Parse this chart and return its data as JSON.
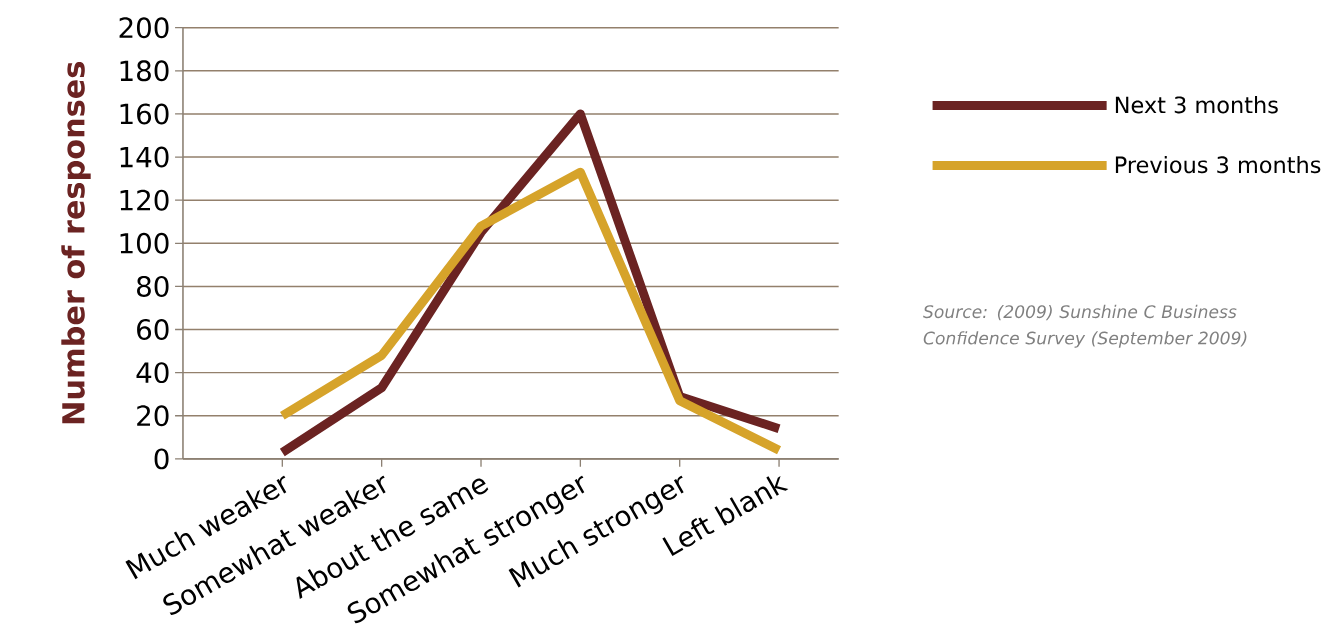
{
  "chart_data": {
    "type": "line",
    "ylabel": "Number of responses",
    "categories": [
      "Much weaker",
      "Somewhat weaker",
      "About the same",
      "Somewhat stronger",
      "Much stronger",
      "Left blank"
    ],
    "series": [
      {
        "name": "Next 3 months",
        "color": "#6b2322",
        "values": [
          3,
          33,
          105,
          160,
          29,
          14
        ]
      },
      {
        "name": "Previous 3 months",
        "color": "#d6a32a",
        "values": [
          20,
          48,
          108,
          133,
          27,
          4
        ]
      }
    ],
    "ylim": [
      0,
      200
    ],
    "yticks": [
      0,
      20,
      40,
      60,
      80,
      100,
      120,
      140,
      160,
      180,
      200
    ],
    "grid": "y",
    "legend": "right",
    "marker": "none",
    "line_style": "solid",
    "annotations": [
      "Source: (2009) Sunshine C Business Confidence Survey (September 2009)"
    ]
  }
}
